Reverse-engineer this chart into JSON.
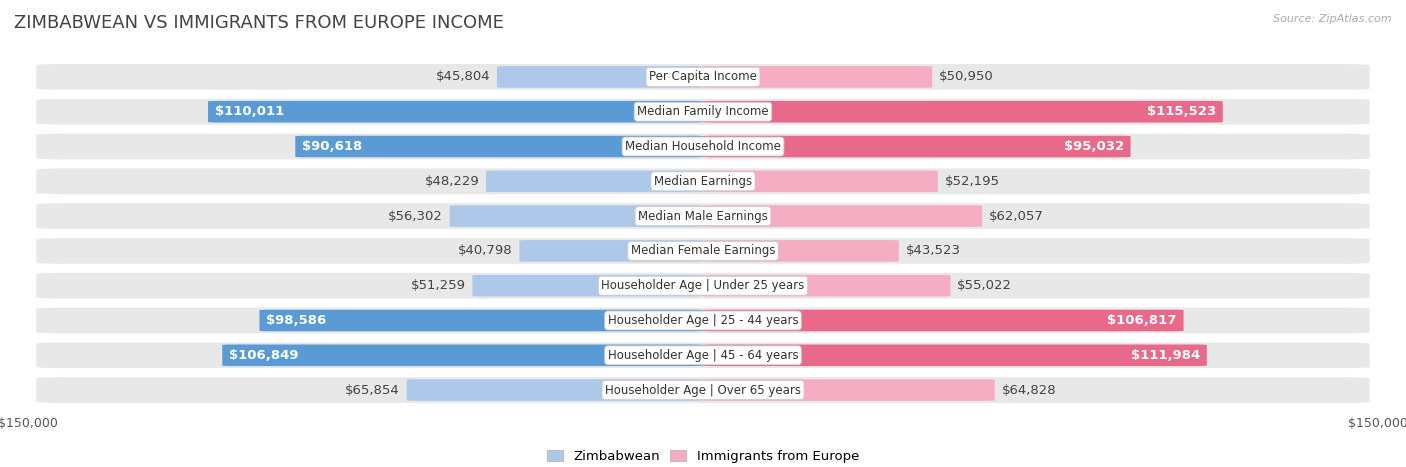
{
  "title": "ZIMBABWEAN VS IMMIGRANTS FROM EUROPE INCOME",
  "source": "Source: ZipAtlas.com",
  "categories": [
    "Per Capita Income",
    "Median Family Income",
    "Median Household Income",
    "Median Earnings",
    "Median Male Earnings",
    "Median Female Earnings",
    "Householder Age | Under 25 years",
    "Householder Age | 25 - 44 years",
    "Householder Age | 45 - 64 years",
    "Householder Age | Over 65 years"
  ],
  "zimbabwean_values": [
    45804,
    110011,
    90618,
    48229,
    56302,
    40798,
    51259,
    98586,
    106849,
    65854
  ],
  "europe_values": [
    50950,
    115523,
    95032,
    52195,
    62057,
    43523,
    55022,
    106817,
    111984,
    64828
  ],
  "zimbabwean_labels": [
    "$45,804",
    "$110,011",
    "$90,618",
    "$48,229",
    "$56,302",
    "$40,798",
    "$51,259",
    "$98,586",
    "$106,849",
    "$65,854"
  ],
  "europe_labels": [
    "$50,950",
    "$115,523",
    "$95,032",
    "$52,195",
    "$62,057",
    "$43,523",
    "$55,022",
    "$106,817",
    "$111,984",
    "$64,828"
  ],
  "max_value": 150000,
  "zimbabwean_color_light": "#adc8e8",
  "zimbabwean_color_dark": "#5b9bd5",
  "europe_color_light": "#f5adc4",
  "europe_color_dark": "#e9698a",
  "bar_height": 0.62,
  "background_color": "#ffffff",
  "row_bg_color": "#e8e8e8",
  "title_fontsize": 13,
  "label_fontsize": 9.5,
  "axis_fontsize": 9,
  "large_threshold": 75000
}
